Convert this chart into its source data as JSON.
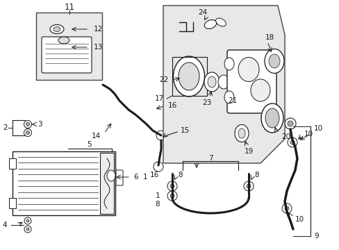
{
  "bg_color": "#ffffff",
  "line_color": "#1a1a1a",
  "gray_bg": "#d8d8d8",
  "light_gray": "#e8e8e8",
  "border_color": "#444444",
  "figsize": [
    4.89,
    3.6
  ],
  "dpi": 100
}
